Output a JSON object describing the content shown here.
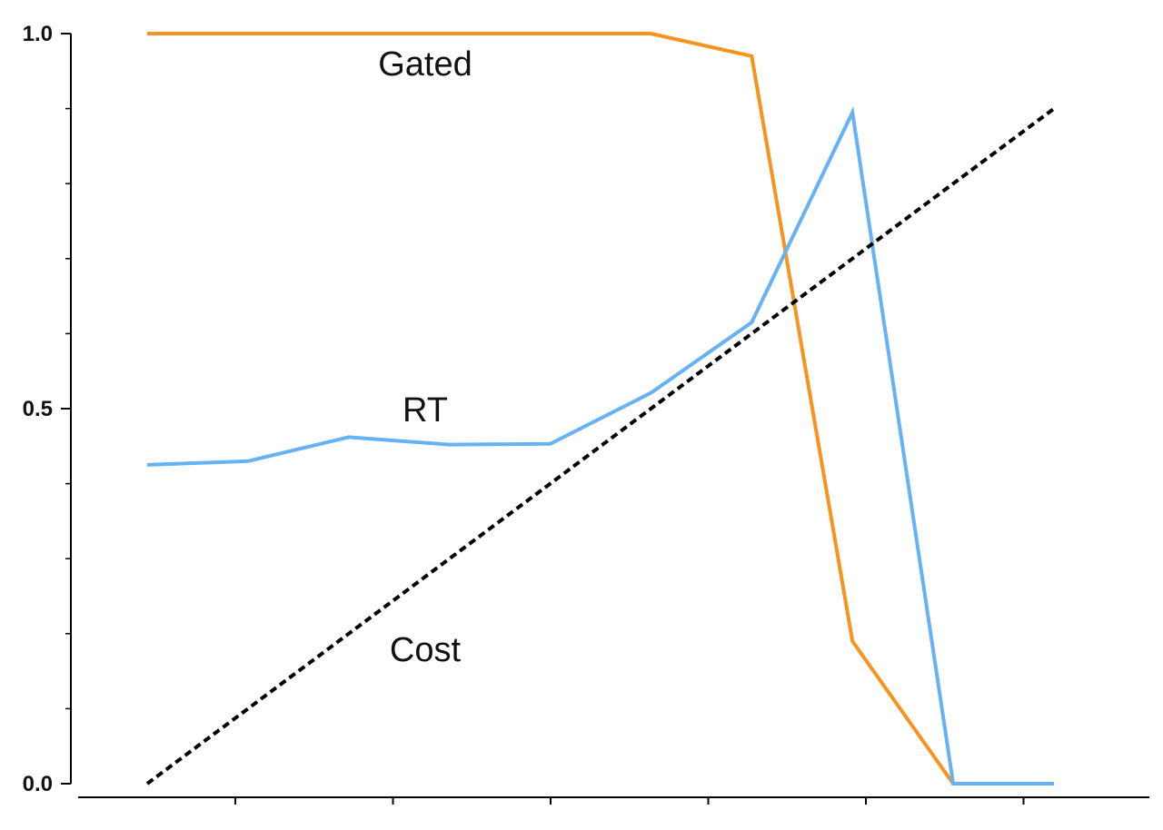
{
  "chart_data": {
    "type": "line",
    "x": [
      0,
      1,
      2,
      3,
      4,
      5,
      6,
      7,
      8,
      9
    ],
    "ylim": [
      0,
      1
    ],
    "y_ticks_major": [
      0.0,
      0.5,
      1.0
    ],
    "y_tick_labels": [
      "0.0",
      "0.5",
      "1.0"
    ],
    "y_ticks_minor": [
      0.1,
      0.2,
      0.3,
      0.4,
      0.6,
      0.7,
      0.8,
      0.9
    ],
    "x_tick_count": 6,
    "x_tick_labels": [
      "",
      "",
      "",
      "",
      "",
      ""
    ],
    "grid": false,
    "legend": "inline labels",
    "series": [
      {
        "name": "Gated",
        "color": "#F7931E",
        "style": "solid",
        "values": [
          1.0,
          1.0,
          1.0,
          1.0,
          1.0,
          1.0,
          0.97,
          0.19,
          0.0,
          null
        ]
      },
      {
        "name": "RT",
        "color": "#66B2F5",
        "style": "solid",
        "values": [
          0.425,
          0.43,
          0.462,
          0.452,
          0.453,
          0.521,
          0.615,
          0.895,
          0.0,
          0.0
        ]
      },
      {
        "name": "Cost",
        "color": "#000000",
        "style": "dashed",
        "values": [
          0.0,
          0.1,
          0.2,
          0.3,
          0.4,
          0.5,
          0.6,
          0.7,
          0.8,
          0.9
        ]
      }
    ]
  }
}
